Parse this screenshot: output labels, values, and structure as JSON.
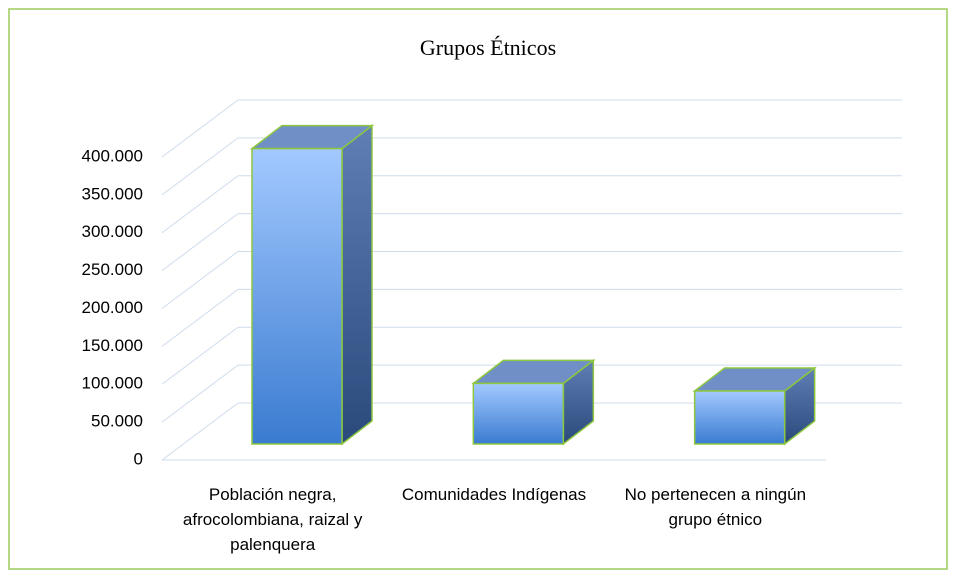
{
  "chart_data": {
    "type": "bar3d",
    "title": "Grupos Étnicos",
    "categories": [
      "Población negra, afrocolombiana, raizal y palenquera",
      "Comunidades Indígenas",
      "No pertenecen a ningún grupo étnico"
    ],
    "values": [
      390000,
      80000,
      70000
    ],
    "color": "#5b9bec",
    "ylim": [
      0,
      400000
    ],
    "yticks": [
      0,
      {
        "value": 50000,
        "label": "50.000"
      },
      {
        "value": 100000,
        "label": "100.000"
      },
      {
        "value": 150000,
        "label": "150.000"
      },
      {
        "value": 200000,
        "label": "200.000"
      },
      {
        "value": 250000,
        "label": "250.000"
      },
      {
        "value": 300000,
        "label": "300.000"
      },
      {
        "value": 350000,
        "label": "350.000"
      },
      {
        "value": 400000,
        "label": "400.000"
      }
    ],
    "grid": true
  }
}
